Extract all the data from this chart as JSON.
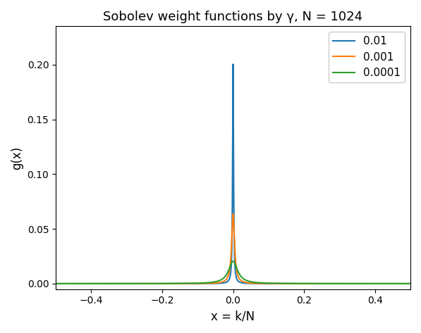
{
  "title": "Sobolev weight functions by γ, N = 1024",
  "xlabel": "x = k/N",
  "ylabel": "g(x)",
  "N": 1024,
  "gammas": [
    0.01,
    0.001,
    0.0001
  ],
  "gamma_labels": [
    "0.01",
    "0.001",
    "0.0001"
  ],
  "colors": [
    "#1f77b4",
    "#ff7f0e",
    "#2ca02c"
  ],
  "xlim": [
    -0.5,
    0.5
  ],
  "ylim": [
    -0.005,
    0.235
  ],
  "figsize": [
    5.97,
    4.73
  ],
  "dpi": 100
}
